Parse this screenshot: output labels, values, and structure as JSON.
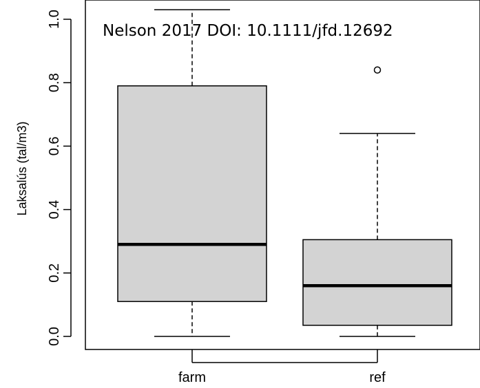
{
  "chart_data": {
    "type": "boxplot",
    "title": "",
    "annotation": "Nelson 2017 DOI: 10.1111/jfd.12692",
    "xlabel": "",
    "ylabel": "Laksalús (tal/m3)",
    "ylim": [
      -0.03,
      1.03
    ],
    "y_ticks": [
      0.0,
      0.2,
      0.4,
      0.6,
      0.8,
      1.0
    ],
    "y_tick_labels": [
      "0.0",
      "0.2",
      "0.4",
      "0.6",
      "0.8",
      "1.0"
    ],
    "categories": [
      "farm",
      "ref"
    ],
    "boxes": [
      {
        "category": "farm",
        "whisker_low": 0.0,
        "q1": 0.11,
        "median": 0.29,
        "q3": 0.79,
        "whisker_high": 1.03,
        "outliers": []
      },
      {
        "category": "ref",
        "whisker_low": 0.0,
        "q1": 0.035,
        "median": 0.16,
        "q3": 0.305,
        "whisker_high": 0.64,
        "outliers": [
          0.84
        ]
      }
    ],
    "box_fill": "#d3d3d3",
    "line_color": "#000000",
    "grid": false,
    "legend": "none"
  }
}
